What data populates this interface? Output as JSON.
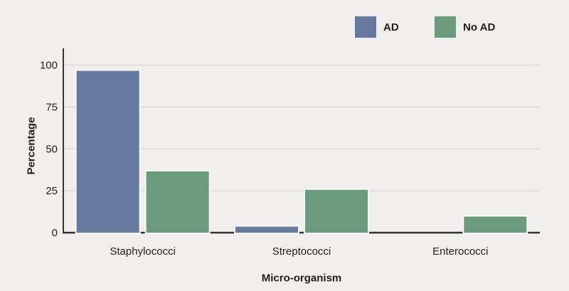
{
  "chart_data": {
    "type": "bar",
    "title": "",
    "categories": [
      "Staphylococci",
      "Streptococci",
      "Enterococci"
    ],
    "series": [
      {
        "name": "AD",
        "color": "#66799e",
        "values": [
          97,
          4,
          0
        ]
      },
      {
        "name": "No AD",
        "color": "#6c9a7c",
        "values": [
          37,
          26,
          10
        ]
      }
    ],
    "xlabel": "Micro-organism",
    "ylabel": "Percentage",
    "ylim": [
      0,
      100
    ],
    "yticks": [
      0,
      25,
      50,
      75,
      100
    ],
    "grid": true,
    "legend_position": "top-right"
  },
  "colors": {
    "background": "#f0efed",
    "gridline": "#dbdad8",
    "axis": "#333333",
    "text": "#1f1f1f",
    "bar_stroke": "#f8f7f5"
  }
}
